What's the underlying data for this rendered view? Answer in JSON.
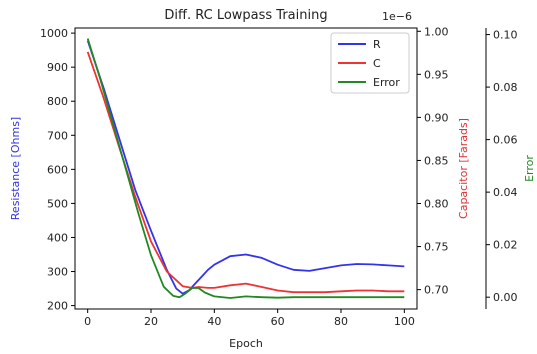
{
  "chart_data": {
    "type": "line",
    "title": "Diff. RC Lowpass Training",
    "xlabel": "Epoch",
    "x_ticks": [
      0,
      20,
      40,
      60,
      80,
      100
    ],
    "xlim": [
      -4,
      104
    ],
    "axes": {
      "left": {
        "label": "Resistance [Ohms]",
        "color": "#3333dd",
        "ticks": [
          200,
          300,
          400,
          500,
          600,
          700,
          800,
          900,
          1000
        ],
        "ylim": [
          190,
          1015
        ]
      },
      "right1": {
        "label": "Capacitor [Farads]",
        "color": "#dd3333",
        "ticks": [
          "0.70",
          "0.75",
          "0.80",
          "0.85",
          "0.90",
          "0.95",
          "1.00"
        ],
        "tick_values": [
          0.7,
          0.75,
          0.8,
          0.85,
          0.9,
          0.95,
          1.0
        ],
        "ylim": [
          0.6775,
          1.0038
        ],
        "offset_text": "1e−6"
      },
      "right2": {
        "label": "Error",
        "color": "#228822",
        "ticks": [
          "0.00",
          "0.02",
          "0.04",
          "0.06",
          "0.08",
          "0.10"
        ],
        "tick_values": [
          0.0,
          0.02,
          0.04,
          0.06,
          0.08,
          0.1
        ],
        "ylim": [
          -0.0045,
          0.1025
        ]
      }
    },
    "legend": {
      "placement": "top-right",
      "entries": [
        "R",
        "C",
        "Error"
      ]
    },
    "series": [
      {
        "name": "R",
        "axis": "left",
        "color": "#3333ee",
        "x": [
          0,
          5,
          10,
          15,
          20,
          25,
          28,
          30,
          32,
          34,
          36,
          38,
          40,
          45,
          50,
          55,
          60,
          65,
          70,
          75,
          80,
          85,
          90,
          95,
          100
        ],
        "y": [
          978,
          840,
          690,
          540,
          420,
          305,
          250,
          235,
          245,
          265,
          285,
          305,
          320,
          345,
          350,
          340,
          320,
          305,
          302,
          310,
          318,
          322,
          321,
          318,
          315
        ]
      },
      {
        "name": "C",
        "axis": "right1",
        "color": "#ee3333",
        "x": [
          0,
          5,
          10,
          15,
          20,
          25,
          30,
          33,
          35,
          38,
          40,
          45,
          50,
          55,
          60,
          65,
          70,
          75,
          80,
          85,
          90,
          95,
          100
        ],
        "y": [
          0.976,
          0.923,
          0.865,
          0.808,
          0.756,
          0.721,
          0.704,
          0.702,
          0.703,
          0.702,
          0.702,
          0.705,
          0.707,
          0.703,
          0.699,
          0.697,
          0.697,
          0.697,
          0.698,
          0.699,
          0.699,
          0.698,
          0.698
        ]
      },
      {
        "name": "Error",
        "axis": "right2",
        "color": "#228822",
        "x": [
          0,
          4,
          8,
          12,
          16,
          20,
          24,
          27,
          29,
          31,
          33,
          35,
          37,
          40,
          45,
          50,
          55,
          60,
          65,
          70,
          75,
          80,
          85,
          90,
          95,
          100
        ],
        "y": [
          0.0985,
          0.083,
          0.066,
          0.049,
          0.032,
          0.016,
          0.004,
          0.0005,
          0.0,
          0.0015,
          0.0035,
          0.0035,
          0.0018,
          0.0003,
          -0.0003,
          0.0003,
          0.0,
          -0.0002,
          0.0,
          0.0,
          0.0,
          0.0,
          0.0,
          0.0,
          0.0,
          0.0
        ]
      }
    ]
  }
}
